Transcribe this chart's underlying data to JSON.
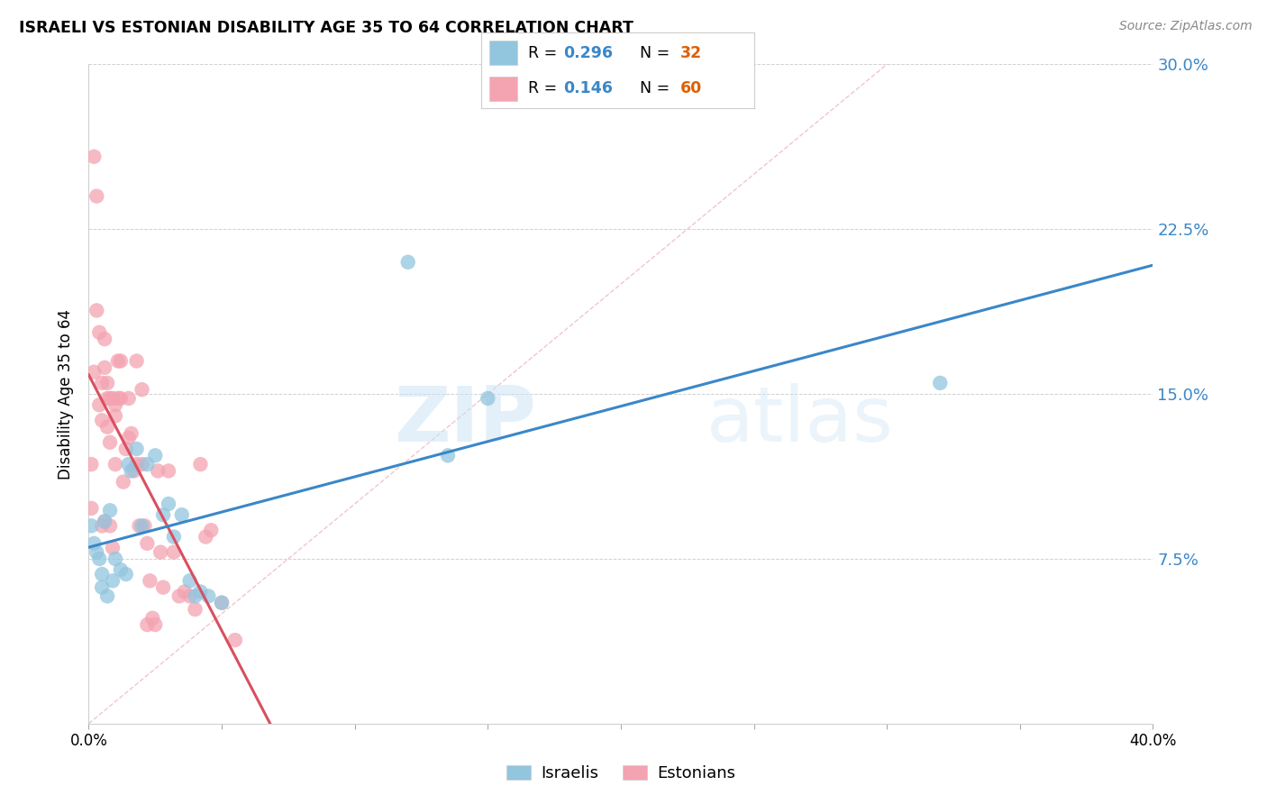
{
  "title": "ISRAELI VS ESTONIAN DISABILITY AGE 35 TO 64 CORRELATION CHART",
  "source": "Source: ZipAtlas.com",
  "ylabel": "Disability Age 35 to 64",
  "xlim": [
    0.0,
    0.4
  ],
  "ylim": [
    0.0,
    0.3
  ],
  "xticks": [
    0.0,
    0.05,
    0.1,
    0.15,
    0.2,
    0.25,
    0.3,
    0.35,
    0.4
  ],
  "yticks": [
    0.0,
    0.075,
    0.15,
    0.225,
    0.3
  ],
  "israel_R": 0.296,
  "israel_N": 32,
  "estonia_R": 0.146,
  "estonia_N": 60,
  "israel_color": "#92c5de",
  "estonia_color": "#f4a3b0",
  "israel_line_color": "#3a87c8",
  "estonia_line_color": "#d94f60",
  "diag_line_color": "#e8a0a8",
  "israel_x": [
    0.001,
    0.002,
    0.003,
    0.004,
    0.005,
    0.005,
    0.006,
    0.007,
    0.008,
    0.009,
    0.01,
    0.012,
    0.014,
    0.015,
    0.016,
    0.018,
    0.02,
    0.022,
    0.025,
    0.028,
    0.03,
    0.032,
    0.035,
    0.038,
    0.04,
    0.042,
    0.045,
    0.05,
    0.12,
    0.135,
    0.15,
    0.32
  ],
  "israel_y": [
    0.09,
    0.082,
    0.078,
    0.075,
    0.068,
    0.062,
    0.092,
    0.058,
    0.097,
    0.065,
    0.075,
    0.07,
    0.068,
    0.118,
    0.115,
    0.125,
    0.09,
    0.118,
    0.122,
    0.095,
    0.1,
    0.085,
    0.095,
    0.065,
    0.058,
    0.06,
    0.058,
    0.055,
    0.21,
    0.122,
    0.148,
    0.155
  ],
  "estonia_x": [
    0.001,
    0.001,
    0.002,
    0.002,
    0.003,
    0.003,
    0.004,
    0.004,
    0.005,
    0.005,
    0.005,
    0.006,
    0.006,
    0.006,
    0.007,
    0.007,
    0.007,
    0.008,
    0.008,
    0.008,
    0.009,
    0.009,
    0.01,
    0.01,
    0.01,
    0.011,
    0.011,
    0.012,
    0.012,
    0.013,
    0.014,
    0.015,
    0.015,
    0.016,
    0.017,
    0.018,
    0.018,
    0.019,
    0.02,
    0.02,
    0.021,
    0.022,
    0.022,
    0.023,
    0.024,
    0.025,
    0.026,
    0.027,
    0.028,
    0.03,
    0.032,
    0.034,
    0.036,
    0.038,
    0.04,
    0.042,
    0.044,
    0.046,
    0.05,
    0.055
  ],
  "estonia_y": [
    0.098,
    0.118,
    0.16,
    0.258,
    0.24,
    0.188,
    0.145,
    0.178,
    0.09,
    0.138,
    0.155,
    0.092,
    0.175,
    0.162,
    0.148,
    0.135,
    0.155,
    0.09,
    0.128,
    0.148,
    0.148,
    0.08,
    0.145,
    0.118,
    0.14,
    0.148,
    0.165,
    0.148,
    0.165,
    0.11,
    0.125,
    0.148,
    0.13,
    0.132,
    0.115,
    0.118,
    0.165,
    0.09,
    0.152,
    0.118,
    0.09,
    0.082,
    0.045,
    0.065,
    0.048,
    0.045,
    0.115,
    0.078,
    0.062,
    0.115,
    0.078,
    0.058,
    0.06,
    0.058,
    0.052,
    0.118,
    0.085,
    0.088,
    0.055,
    0.038
  ]
}
